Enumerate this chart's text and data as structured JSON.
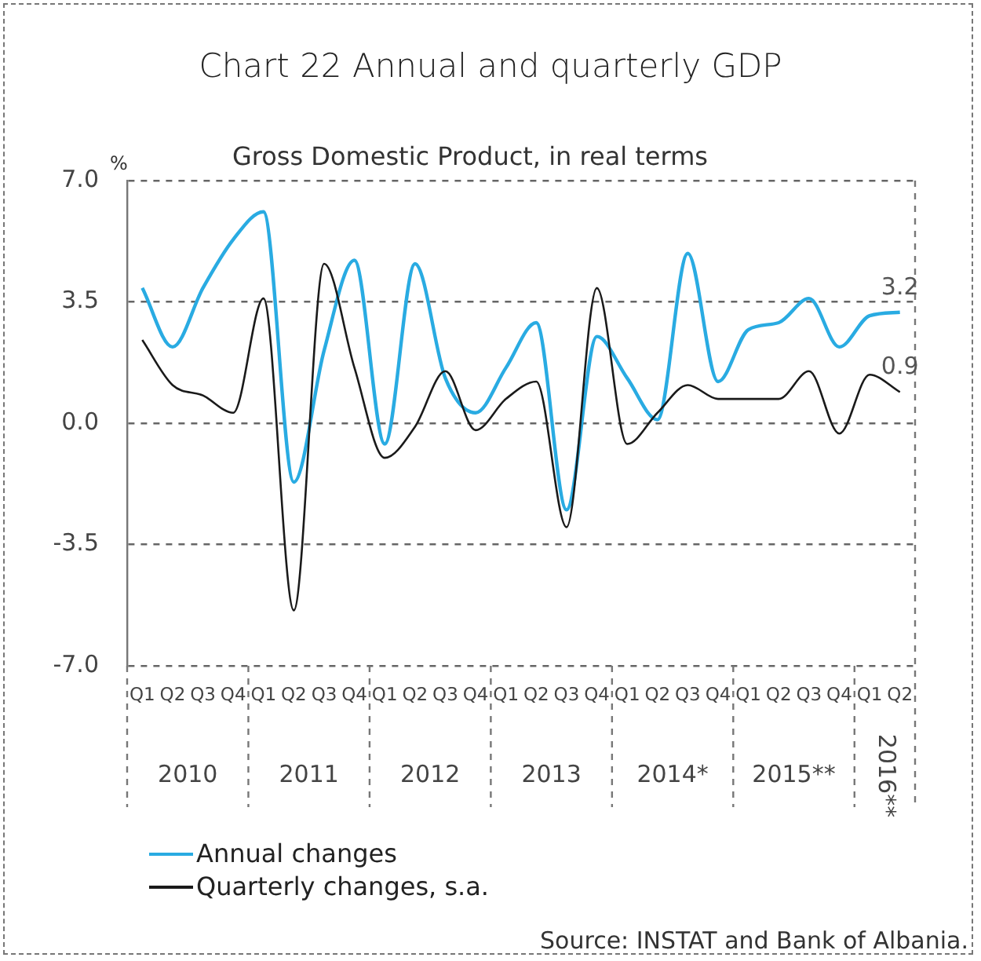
{
  "chart_data": {
    "type": "line",
    "title": "Chart 22 Annual and quarterly GDP",
    "subtitle": "Gross Domestic Product, in real terms",
    "ylabel": "%",
    "categories": [
      "Q1",
      "Q2",
      "Q3",
      "Q4",
      "Q1",
      "Q2",
      "Q3",
      "Q4",
      "Q1",
      "Q2",
      "Q3",
      "Q4",
      "Q1",
      "Q2",
      "Q3",
      "Q4",
      "Q1",
      "Q2",
      "Q3",
      "Q4",
      "Q1",
      "Q2",
      "Q3",
      "Q4",
      "Q1",
      "Q2"
    ],
    "series": [
      {
        "name": "Annual changes",
        "color": "#29abe2",
        "values": [
          3.9,
          2.2,
          3.9,
          5.3,
          6.1,
          -1.7,
          2.1,
          4.7,
          -0.6,
          4.6,
          1.3,
          0.3,
          1.6,
          2.9,
          -2.5,
          2.5,
          1.3,
          0.1,
          4.9,
          1.2,
          2.7,
          2.9,
          3.6,
          2.2,
          3.1,
          3.2
        ],
        "value_labels": [
          null,
          null,
          null,
          null,
          null,
          null,
          null,
          null,
          null,
          null,
          null,
          null,
          null,
          null,
          null,
          null,
          null,
          null,
          null,
          null,
          null,
          null,
          null,
          null,
          null,
          "3.2"
        ]
      },
      {
        "name": "Quarterly changes, s.a.",
        "color": "#1a1a1a",
        "values": [
          2.4,
          1.1,
          0.8,
          0.3,
          3.6,
          -5.4,
          4.6,
          1.6,
          -1.0,
          -0.1,
          1.5,
          -0.2,
          0.7,
          1.2,
          -3.0,
          3.9,
          -0.6,
          0.3,
          1.1,
          0.7,
          0.7,
          0.7,
          1.5,
          -0.3,
          1.4,
          0.9
        ],
        "value_labels": [
          null,
          null,
          null,
          null,
          null,
          null,
          null,
          null,
          null,
          null,
          null,
          null,
          null,
          null,
          null,
          null,
          null,
          null,
          null,
          null,
          null,
          null,
          null,
          null,
          null,
          "0.9"
        ]
      }
    ],
    "ylim": [
      -7,
      7
    ],
    "yticks": [
      {
        "value": 7,
        "label": "7.0"
      },
      {
        "value": 3.5,
        "label": "3.5"
      },
      {
        "value": 0,
        "label": "0.0"
      },
      {
        "value": -3.5,
        "label": "-3.5"
      },
      {
        "value": -7,
        "label": "-7.0"
      }
    ],
    "grid": "y",
    "legend": "bottom left",
    "marker": "none",
    "line_style": "solid",
    "annotations": [
      "2010",
      "2011",
      "2012",
      "2013",
      "2014*",
      "2015**",
      "2016**",
      "Source: INSTAT and Bank of Albania."
    ]
  }
}
